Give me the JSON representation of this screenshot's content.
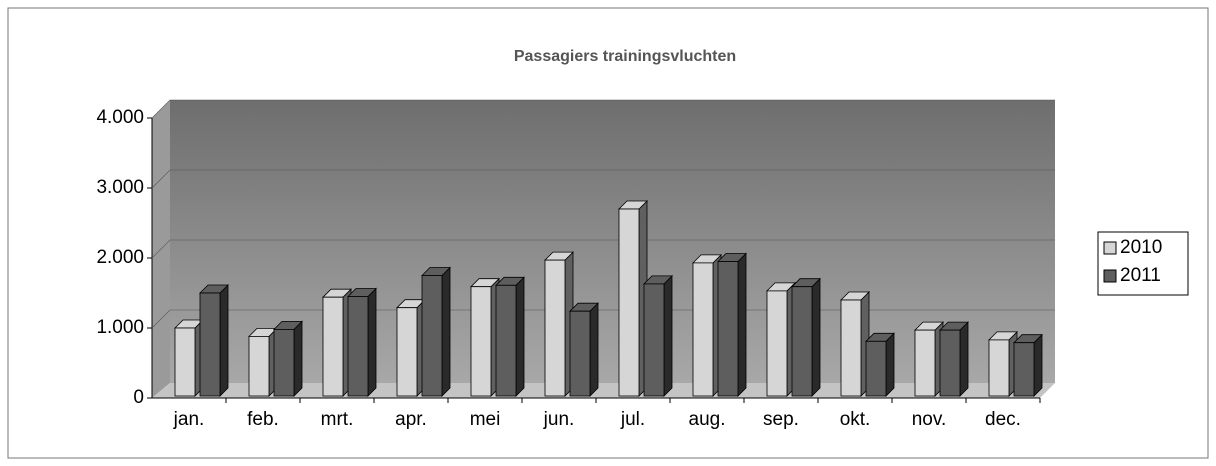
{
  "chart_data": {
    "type": "bar3d",
    "title": "Passagiers trainingsvluchten",
    "categories": [
      "jan.",
      "feb.",
      "mrt.",
      "apr.",
      "mei",
      "jun.",
      "jul.",
      "aug.",
      "sep.",
      "okt.",
      "nov.",
      "dec."
    ],
    "series": [
      {
        "name": "2010",
        "color": "#d6d6d6",
        "values": [
          1000,
          880,
          1440,
          1290,
          1590,
          1970,
          2700,
          1930,
          1530,
          1400,
          970,
          830
        ]
      },
      {
        "name": "2011",
        "color": "#5e5e5e",
        "values": [
          1500,
          980,
          1450,
          1750,
          1610,
          1240,
          1630,
          1950,
          1590,
          810,
          970,
          790
        ]
      }
    ],
    "ylim": [
      0,
      4000
    ],
    "yticks": [
      0,
      {
        "value": 1000,
        "label": "1.000"
      },
      {
        "value": 2000,
        "label": "2.000"
      },
      {
        "value": 3000,
        "label": "3.000"
      },
      {
        "value": 4000,
        "label": "4.000"
      }
    ],
    "grid": true,
    "legend": "right"
  }
}
